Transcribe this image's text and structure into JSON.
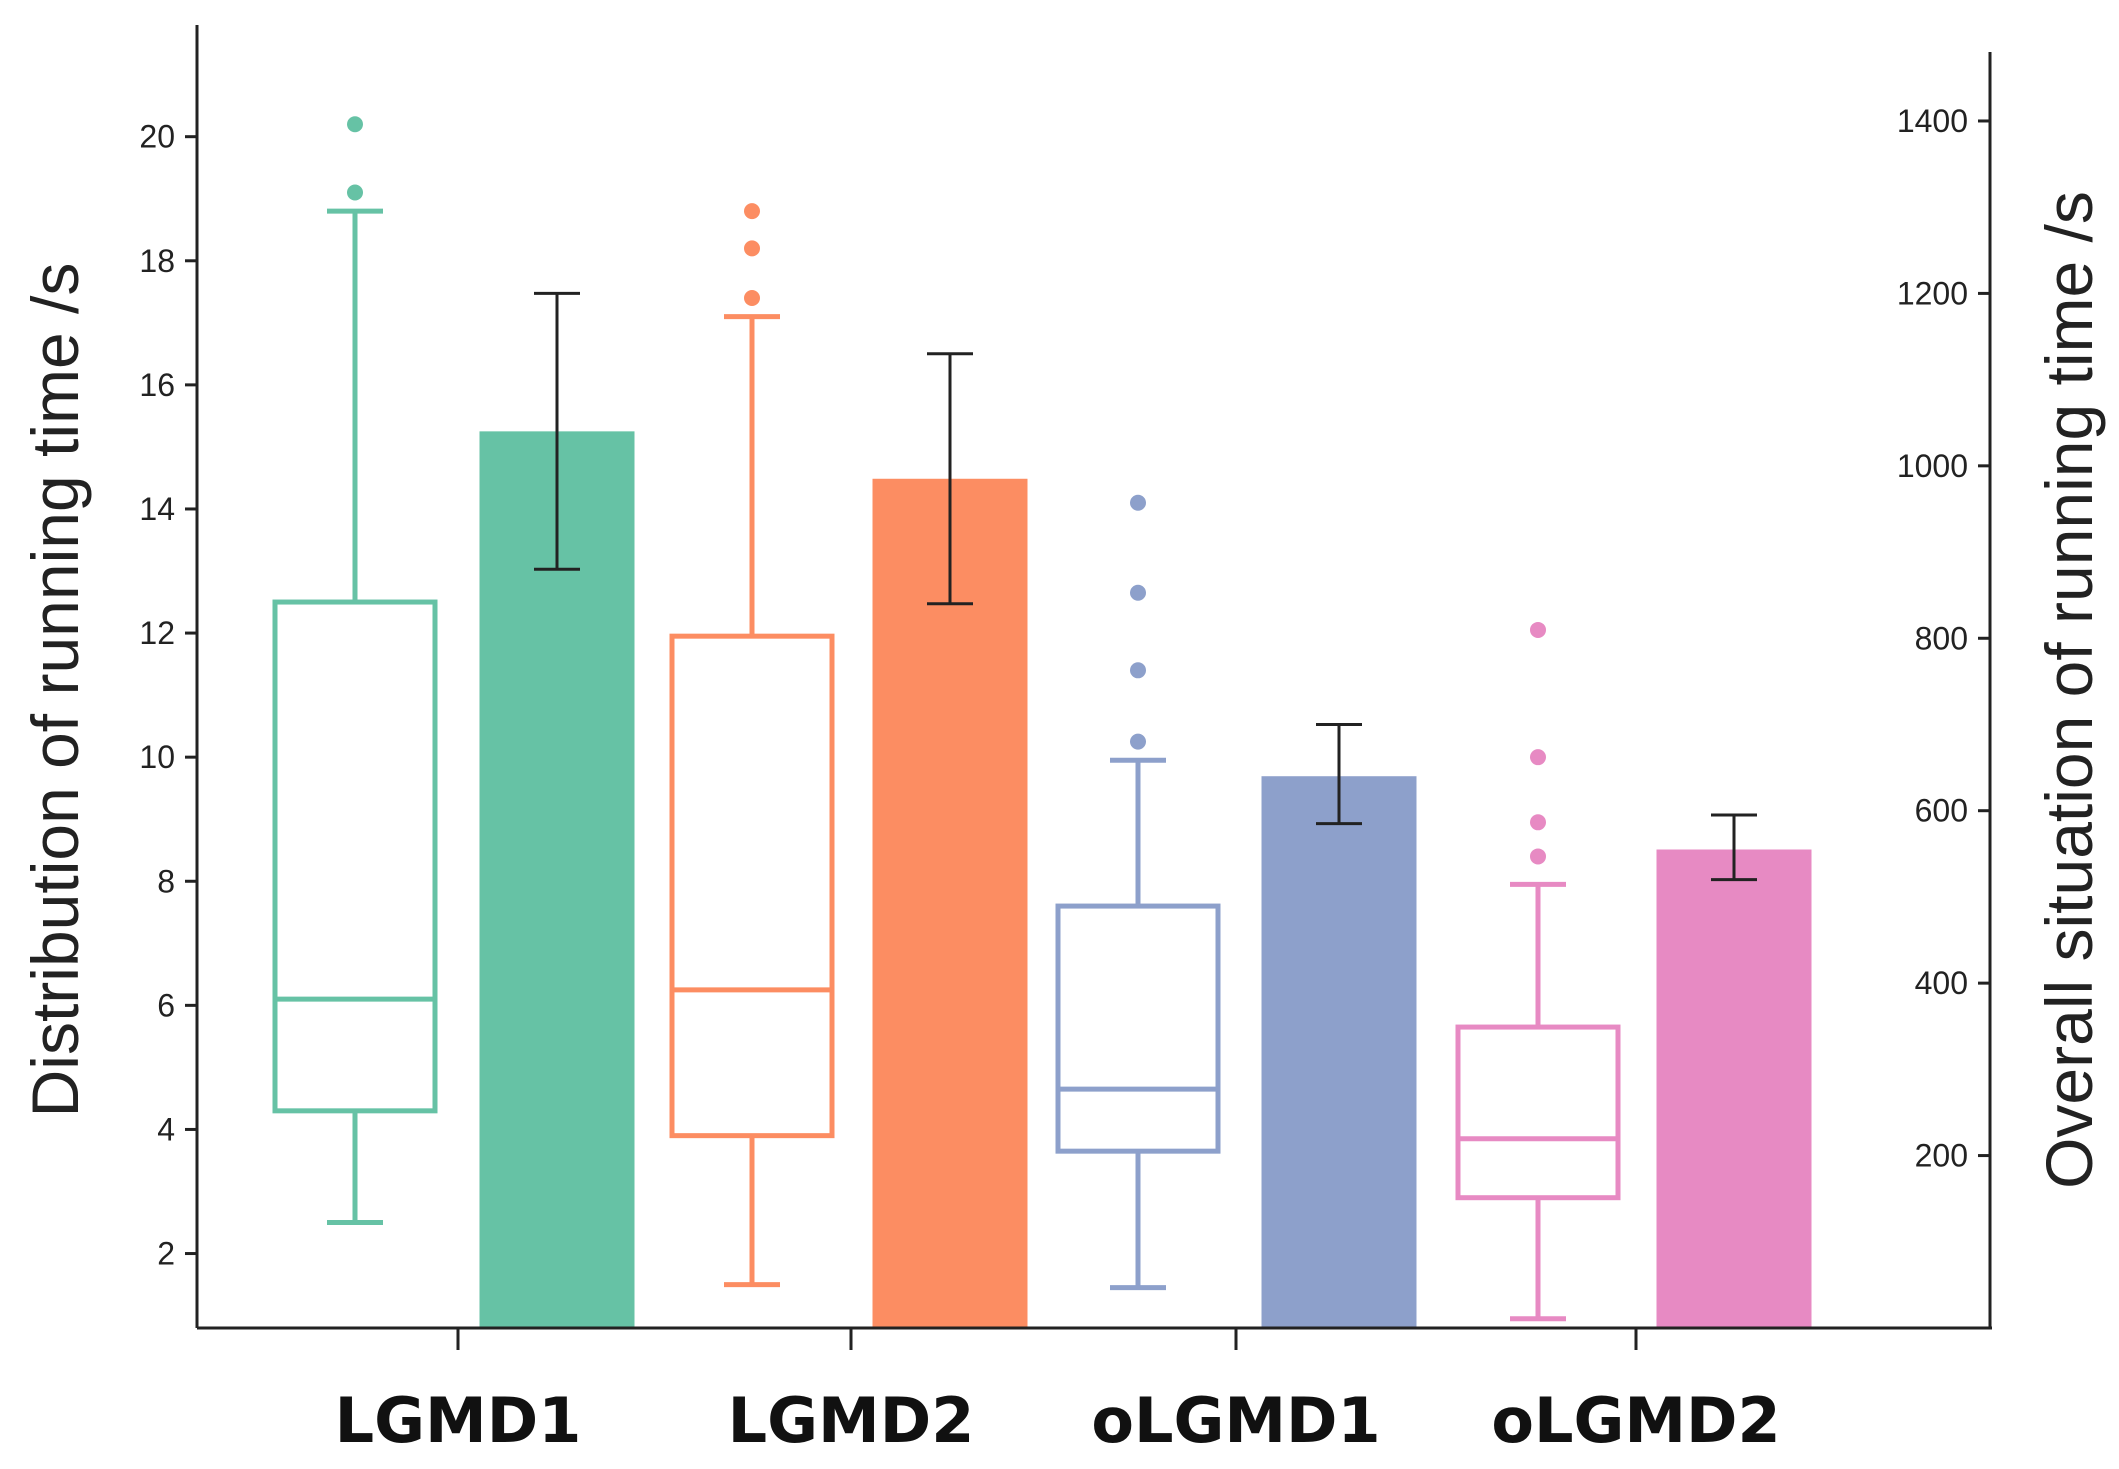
{
  "chart_data": {
    "type": "box+bar",
    "categories": [
      "LGMD1",
      "LGMD2",
      "oLGMD1",
      "oLGMD2"
    ],
    "left_axis": {
      "label": "Distribution of running time /s",
      "range": [
        0.8,
        21.8
      ],
      "ticks": [
        2,
        4,
        6,
        8,
        10,
        12,
        14,
        16,
        18,
        20
      ],
      "tick_labels": [
        "2",
        "4",
        "6",
        "8",
        "10",
        "12",
        "14",
        "16",
        "18",
        "20"
      ]
    },
    "right_axis": {
      "label": "Overall situation of running time /s",
      "range": [
        0,
        1480
      ],
      "ticks": [
        200,
        400,
        600,
        800,
        1000,
        1200,
        1400
      ],
      "tick_labels": [
        "200",
        "400",
        "600",
        "800",
        "1000",
        "1200",
        "1400"
      ]
    },
    "boxes": [
      {
        "name": "LGMD1",
        "color": "#66c2a5",
        "whisker_low": 2.5,
        "q1": 4.3,
        "median": 6.1,
        "q3": 12.5,
        "whisker_high": 18.8,
        "outliers": [
          19.1,
          20.2
        ]
      },
      {
        "name": "LGMD2",
        "color": "#fc8d62",
        "whisker_low": 1.5,
        "q1": 3.9,
        "median": 6.25,
        "q3": 11.95,
        "whisker_high": 17.1,
        "outliers": [
          17.4,
          18.2,
          18.8
        ]
      },
      {
        "name": "oLGMD1",
        "color": "#8da0cb",
        "whisker_low": 1.45,
        "q1": 3.65,
        "median": 4.65,
        "q3": 7.6,
        "whisker_high": 9.95,
        "outliers": [
          10.25,
          11.4,
          12.65,
          14.1
        ]
      },
      {
        "name": "oLGMD2",
        "color": "#e78ac3",
        "whisker_low": 0.95,
        "q1": 2.9,
        "median": 3.85,
        "q3": 5.65,
        "whisker_high": 7.95,
        "outliers": [
          8.4,
          8.95,
          10.0,
          12.05
        ]
      }
    ],
    "bars": [
      {
        "name": "LGMD1",
        "color": "#66c2a5",
        "value": 1040,
        "err_low": 880,
        "err_high": 1200
      },
      {
        "name": "LGMD2",
        "color": "#fc8d62",
        "value": 985,
        "err_low": 840,
        "err_high": 1130
      },
      {
        "name": "oLGMD1",
        "color": "#8da0cb",
        "value": 640,
        "err_low": 585,
        "err_high": 700
      },
      {
        "name": "oLGMD2",
        "color": "#e78ac3",
        "value": 555,
        "err_low": 520,
        "err_high": 595
      }
    ]
  }
}
